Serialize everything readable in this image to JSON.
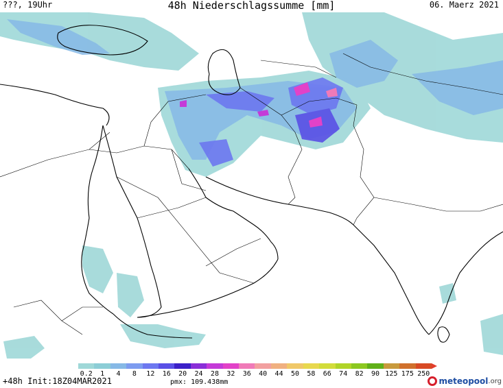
{
  "header": {
    "left": "???, 19Uhr",
    "title": "48h Niederschlagssumme [mm]",
    "right": "06. Maerz 2021"
  },
  "legend": {
    "ticks": [
      "0.2",
      "1",
      "4",
      "8",
      "12",
      "16",
      "20",
      "24",
      "28",
      "32",
      "36",
      "40",
      "44",
      "50",
      "58",
      "66",
      "74",
      "82",
      "90",
      "125",
      "175",
      "250"
    ],
    "colors": [
      "#9fd8d8",
      "#8ccdd6",
      "#86b9e6",
      "#7d9cf0",
      "#6d78f0",
      "#5a50e6",
      "#3b20c8",
      "#8a2fd8",
      "#c43ad8",
      "#e242c8",
      "#f07ab8",
      "#f2a0a0",
      "#f0b080",
      "#f0c868",
      "#e8d84e",
      "#d2dc3a",
      "#b0d428",
      "#8cc820",
      "#60b018",
      "#c89a3c",
      "#d0702c",
      "#d84a24"
    ],
    "arrow_color": "#e23c2c"
  },
  "footer": {
    "left": "+48h Init:18Z04MAR2021",
    "pmx": "pmx: 109.438mm",
    "logo_main": "meteopool",
    "logo_tld": ".org"
  },
  "map": {
    "land_color": "#ffffff",
    "border_color": "#000000",
    "precip_colors": {
      "light": "#9fd8d8",
      "medium": "#86b9e6",
      "heavy": "#6d78f0",
      "very_heavy": "#5a50e6",
      "peak": "#e242c8",
      "max": "#f07ab8"
    }
  }
}
